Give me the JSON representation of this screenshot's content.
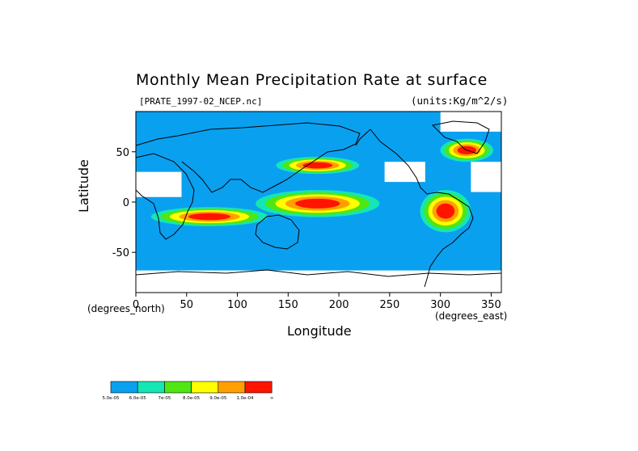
{
  "chart_data": {
    "type": "heatmap",
    "title": "Monthly Mean Precipitation Rate at surface",
    "subtitle_left": "[PRATE_1997-02_NCEP.nc]",
    "subtitle_right": "(units:Kg/m^2/s)",
    "xlabel": "Longitude",
    "ylabel": "Latitude",
    "x_unit_label": "(degrees_north)",
    "x_unit_label_2": "(degrees_east)",
    "xlim": [
      0,
      360
    ],
    "ylim": [
      -90,
      90
    ],
    "x_ticks": [
      0,
      50,
      100,
      150,
      200,
      250,
      300,
      350
    ],
    "y_ticks": [
      50,
      0,
      -50
    ],
    "x_tick_labels": [
      "0",
      "50",
      "100",
      "150",
      "200",
      "250",
      "300",
      "350"
    ],
    "y_tick_labels": [
      "50",
      "0",
      "-50"
    ],
    "background_color": "#0aa0f0",
    "missing_color": "#ffffff",
    "colorbar": {
      "colors": [
        "#0aa0f0",
        "#14e6b4",
        "#50e614",
        "#ffff00",
        "#ffa000",
        "#ff1400"
      ],
      "labels": [
        "5.0e-05",
        "6.0e-05",
        "7e-05",
        "8.0e-05",
        "9.0e-05",
        "1.0e-04",
        "∞"
      ]
    },
    "regions": [
      {
        "level": 5,
        "lon": [
          138,
          220
        ],
        "lat": [
          28,
          45
        ]
      },
      {
        "level": 5,
        "lon": [
          300,
          352
        ],
        "lat": [
          40,
          63
        ]
      },
      {
        "level": 5,
        "lon": [
          118,
          240
        ],
        "lat": [
          -15,
          12
        ]
      },
      {
        "level": 5,
        "lon": [
          15,
          130
        ],
        "lat": [
          -24,
          -5
        ]
      },
      {
        "level": 5,
        "lon": [
          280,
          330
        ],
        "lat": [
          -30,
          12
        ]
      }
    ],
    "missing_regions": [
      {
        "lon": [
          0,
          45
        ],
        "lat": [
          5,
          30
        ]
      },
      {
        "lon": [
          245,
          285
        ],
        "lat": [
          20,
          40
        ]
      },
      {
        "lon": [
          0,
          360
        ],
        "lat": [
          -90,
          -68
        ]
      },
      {
        "lon": [
          300,
          360
        ],
        "lat": [
          70,
          90
        ]
      },
      {
        "lon": [
          330,
          360
        ],
        "lat": [
          10,
          40
        ]
      }
    ]
  }
}
